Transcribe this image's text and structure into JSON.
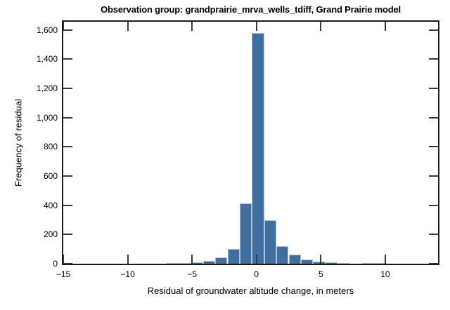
{
  "figure": {
    "title": "Observation group: grandprairie_mrva_wells_tdiff, Grand Prairie model",
    "xlabel": "Residual of groundwater altitude change, in meters",
    "ylabel": "Frequency of residual"
  },
  "chart_data": {
    "type": "bar",
    "subtype": "histogram",
    "title": "Observation group: grandprairie_mrva_wells_tdiff, Grand Prairie model",
    "xlabel": "Residual of groundwater altitude change, in meters",
    "ylabel": "Frequency of residual",
    "bar_color": "#3e6f9f",
    "bar_edge_color": "#a9c4da",
    "frame_color": "#1a1a1a",
    "xlim": [
      -15,
      14.1
    ],
    "ylim": [
      0,
      1655
    ],
    "grid": false,
    "legend": "none",
    "xticks": [
      -15,
      -10,
      -5,
      0,
      5,
      10
    ],
    "xtick_labels": [
      "−15",
      "−10",
      "−5",
      "0",
      "5",
      "10"
    ],
    "yticks": [
      0,
      200,
      400,
      600,
      800,
      1000,
      1200,
      1400,
      1600
    ],
    "ytick_labels": [
      "0",
      "200",
      "400",
      "600",
      "800",
      "1,000",
      "1,200",
      "1,400",
      "1,600"
    ],
    "bins": {
      "edges": [
        -7.0,
        -6.05,
        -5.1,
        -4.15,
        -3.2,
        -2.25,
        -1.3,
        -0.35,
        0.6,
        1.55,
        2.5,
        3.45,
        4.4,
        5.35,
        6.3,
        7.25,
        8.2,
        9.15,
        10.1
      ],
      "counts": [
        3,
        5,
        10,
        20,
        45,
        100,
        415,
        1580,
        300,
        118,
        62,
        30,
        15,
        12,
        5,
        0,
        4,
        3
      ]
    }
  }
}
